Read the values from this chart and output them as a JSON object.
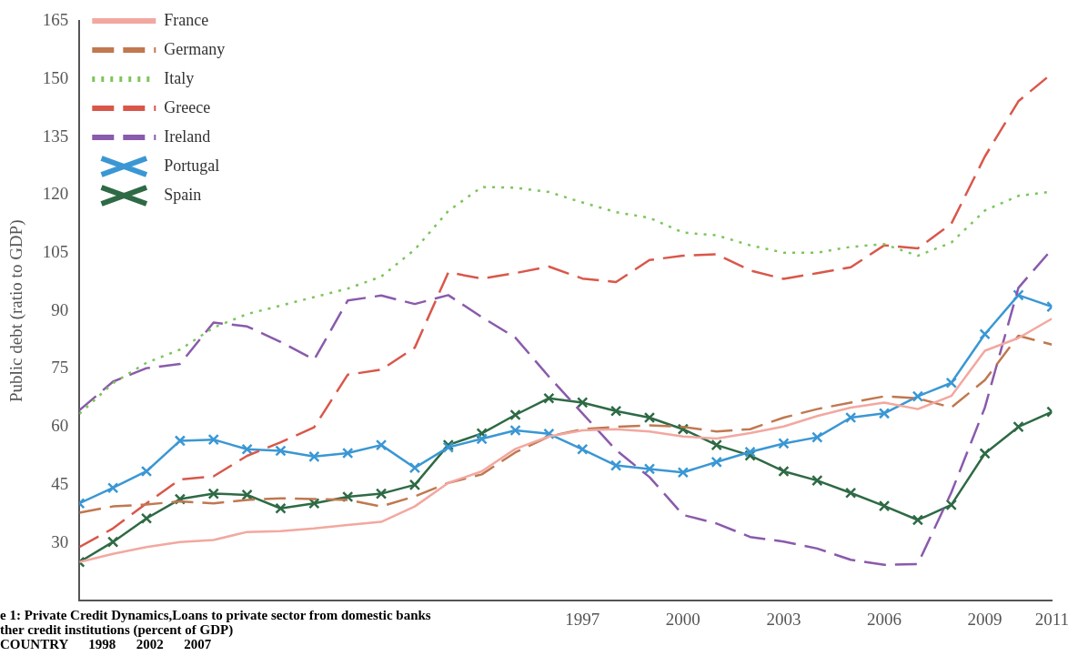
{
  "chart_data": {
    "type": "line",
    "ylabel": "Public debt (ratio to GDP)",
    "x": [
      1982,
      1983,
      1984,
      1985,
      1986,
      1987,
      1988,
      1989,
      1990,
      1991,
      1992,
      1993,
      1994,
      1995,
      1996,
      1997,
      1998,
      1999,
      2000,
      2001,
      2002,
      2003,
      2004,
      2005,
      2006,
      2007,
      2008,
      2009,
      2010,
      2011
    ],
    "xlim": [
      1982,
      2011
    ],
    "xticks": [
      1997,
      2000,
      2003,
      2006,
      2009,
      2011
    ],
    "ylim": [
      15,
      165
    ],
    "yticks": [
      30,
      45,
      60,
      75,
      90,
      105,
      120,
      135,
      150,
      165
    ],
    "grid": false,
    "legend": "top left",
    "series": [
      {
        "name": "France",
        "color": "#f2a8a0",
        "line_style": "solid",
        "marker": "none",
        "values": [
          25,
          27.1,
          28.9,
          30.2,
          30.7,
          32.8,
          33,
          33.7,
          34.6,
          35.4,
          39.4,
          45.5,
          48.5,
          54.3,
          57.5,
          59.1,
          59.4,
          58.8,
          57.5,
          57,
          58.4,
          60.1,
          62.8,
          65,
          66.3,
          64.6,
          68,
          79.7,
          83,
          88
        ]
      },
      {
        "name": "Germany",
        "color": "#c07850",
        "line_style": "dashed",
        "marker": "none",
        "values": [
          37.8,
          39.4,
          39.9,
          40.7,
          40.2,
          41.1,
          41.5,
          41.3,
          41.1,
          39.4,
          42,
          45.5,
          47.7,
          53.4,
          57.5,
          59.4,
          60,
          60.4,
          60,
          58.8,
          59.4,
          62.4,
          64.6,
          66.3,
          67.9,
          67.4,
          65,
          72.1,
          83.6,
          81.3
        ]
      },
      {
        "name": "Italy",
        "color": "#7cc55a",
        "line_style": "dotted",
        "marker": "none",
        "values": [
          63.4,
          71.3,
          76.6,
          80,
          85.7,
          89.2,
          91.4,
          93.6,
          95.8,
          98.9,
          105.9,
          115.9,
          122.1,
          121.9,
          120.8,
          118.1,
          115.6,
          114.1,
          110.3,
          109.6,
          107,
          105.1,
          105.1,
          106.6,
          107.3,
          104.3,
          107.7,
          116,
          119.8,
          120.9
        ]
      },
      {
        "name": "Greece",
        "color": "#d9574a",
        "line_style": "dashed",
        "marker": "none",
        "values": [
          28.9,
          33.7,
          40.2,
          46.4,
          47.2,
          52.5,
          56,
          59.9,
          73.5,
          74.8,
          80.5,
          100,
          98.4,
          99.8,
          101.5,
          98.4,
          97.5,
          103.2,
          104.3,
          104.7,
          100.5,
          98.3,
          99.8,
          101.3,
          107,
          106.2,
          112.6,
          130,
          144.3,
          151.5
        ]
      },
      {
        "name": "Ireland",
        "color": "#8a5aab",
        "line_style": "dashed",
        "marker": "none",
        "values": [
          64.3,
          71.7,
          75.2,
          76.3,
          87,
          86,
          82,
          77.4,
          92.7,
          94,
          91.8,
          94.1,
          88.4,
          83.1,
          73,
          63.5,
          54,
          47,
          37.2,
          35,
          31.5,
          30.3,
          28.5,
          25.6,
          24.3,
          24.5,
          43,
          65,
          96,
          106
        ]
      },
      {
        "name": "Portugal",
        "color": "#3a97d4",
        "line_style": "solid",
        "marker": "cross",
        "values": [
          40.2,
          44.2,
          48.5,
          56.4,
          56.7,
          54.2,
          53.8,
          52.3,
          53.2,
          55.3,
          49.4,
          54.7,
          56.9,
          59.1,
          58.2,
          54.2,
          50,
          49.1,
          48.2,
          50.9,
          53.5,
          55.7,
          57.3,
          62.4,
          63.5,
          67.9,
          71.4,
          84,
          94.1,
          91.1
        ]
      },
      {
        "name": "Spain",
        "color": "#2e6a45",
        "line_style": "solid",
        "marker": "cross",
        "values": [
          25,
          30.2,
          36.3,
          41.3,
          42.7,
          42.4,
          38.9,
          40.2,
          41.9,
          42.7,
          45,
          55.3,
          58.3,
          63.1,
          67.4,
          66.3,
          64.1,
          62.4,
          59.4,
          55.3,
          52.6,
          48.5,
          46.1,
          42.9,
          39.5,
          35.9,
          39.8,
          53.1,
          60,
          63.9
        ]
      }
    ],
    "annotations": [
      "e 1: Private Credit Dynamics,Loans to private sector from domestic banks",
      "ther credit institutions (percent of GDP)",
      "COUNTRY      1998      2002      2007"
    ]
  }
}
